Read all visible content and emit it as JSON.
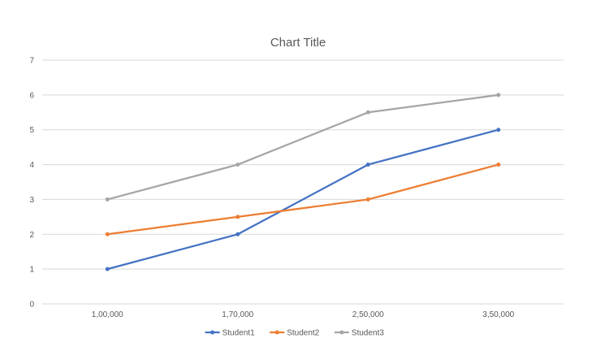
{
  "chart_data": {
    "type": "line",
    "title": "Chart Title",
    "xlabel": "",
    "ylabel": "",
    "categories": [
      "1,00,000",
      "1,70,000",
      "2,50,000",
      "3,50,000"
    ],
    "ylim": [
      0,
      7
    ],
    "yticks": [
      0,
      1,
      2,
      3,
      4,
      5,
      6,
      7
    ],
    "grid": true,
    "legend_position": "bottom",
    "series": [
      {
        "name": "Student1",
        "color": "#4472C4",
        "values": [
          1,
          2,
          4,
          5
        ]
      },
      {
        "name": "Student2",
        "color": "#ED7D31",
        "values": [
          2,
          2.5,
          3,
          4
        ]
      },
      {
        "name": "Student3",
        "color": "#A5A5A5",
        "values": [
          3,
          4,
          5.5,
          6
        ]
      }
    ]
  }
}
